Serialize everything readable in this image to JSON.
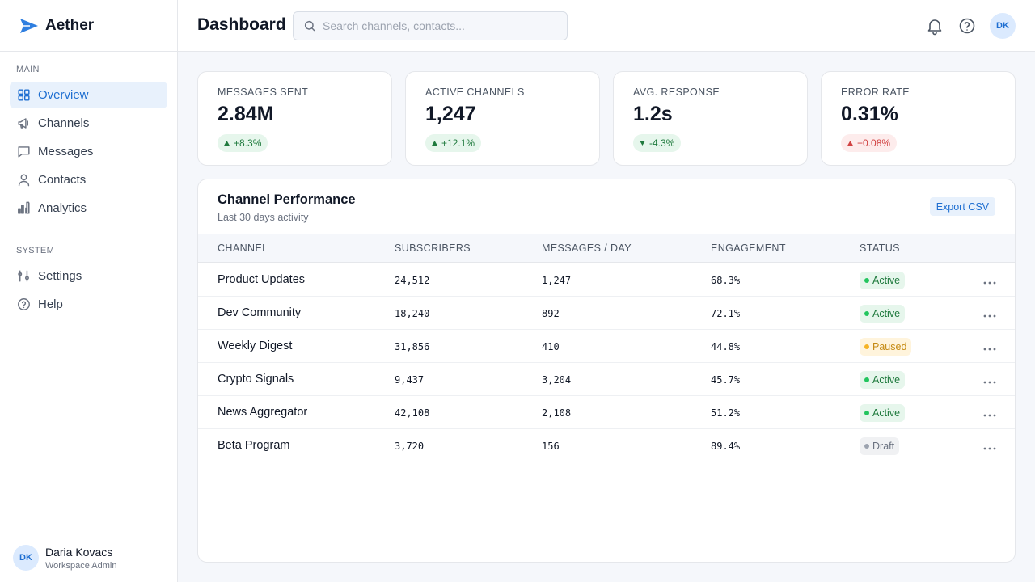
{
  "brand": "Aether",
  "header": {
    "title": "Dashboard",
    "search_placeholder": "Search channels, contacts...",
    "avatar": "DK"
  },
  "sidebar": {
    "sections": [
      {
        "label": "MAIN",
        "items": [
          {
            "label": "Overview",
            "icon": "grid",
            "active": true
          },
          {
            "label": "Channels",
            "icon": "megaphone",
            "active": false
          },
          {
            "label": "Messages",
            "icon": "chat",
            "active": false
          },
          {
            "label": "Contacts",
            "icon": "person",
            "active": false
          },
          {
            "label": "Analytics",
            "icon": "bars",
            "active": false
          }
        ]
      },
      {
        "label": "SYSTEM",
        "items": [
          {
            "label": "Settings",
            "icon": "sliders",
            "active": false
          },
          {
            "label": "Help",
            "icon": "help",
            "active": false
          }
        ]
      }
    ],
    "user": {
      "initials": "DK",
      "name": "Daria Kovacs",
      "role": "Workspace Admin"
    }
  },
  "stats": [
    {
      "label": "MESSAGES SENT",
      "value": "2.84M",
      "change": "+8.3%",
      "direction": "up",
      "tone": "positive"
    },
    {
      "label": "ACTIVE CHANNELS",
      "value": "1,247",
      "change": "+12.1%",
      "direction": "up",
      "tone": "positive"
    },
    {
      "label": "AVG. RESPONSE",
      "value": "1.2s",
      "change": "-4.3%",
      "direction": "down",
      "tone": "positive"
    },
    {
      "label": "ERROR RATE",
      "value": "0.31%",
      "change": "+0.08%",
      "direction": "up",
      "tone": "negative"
    }
  ],
  "table": {
    "title": "Channel Performance",
    "subtitle": "Last 30 days activity",
    "action": "Export CSV",
    "columns": [
      "CHANNEL",
      "SUBSCRIBERS",
      "MESSAGES / DAY",
      "ENGAGEMENT",
      "STATUS"
    ],
    "rows": [
      {
        "channel": "Product Updates",
        "subscribers": "24,512",
        "messages_per_day": "1,247",
        "engagement": "68.3%",
        "status": "Active",
        "tone": "green"
      },
      {
        "channel": "Dev Community",
        "subscribers": "18,240",
        "messages_per_day": "892",
        "engagement": "72.1%",
        "status": "Active",
        "tone": "green"
      },
      {
        "channel": "Weekly Digest",
        "subscribers": "31,856",
        "messages_per_day": "410",
        "engagement": "44.8%",
        "status": "Paused",
        "tone": "amber"
      },
      {
        "channel": "Crypto Signals",
        "subscribers": "9,437",
        "messages_per_day": "3,204",
        "engagement": "45.7%",
        "status": "Active",
        "tone": "green"
      },
      {
        "channel": "News Aggregator",
        "subscribers": "42,108",
        "messages_per_day": "2,108",
        "engagement": "51.2%",
        "status": "Active",
        "tone": "green"
      },
      {
        "channel": "Beta Program",
        "subscribers": "3,720",
        "messages_per_day": "156",
        "engagement": "89.4%",
        "status": "Draft",
        "tone": "gray"
      }
    ]
  }
}
